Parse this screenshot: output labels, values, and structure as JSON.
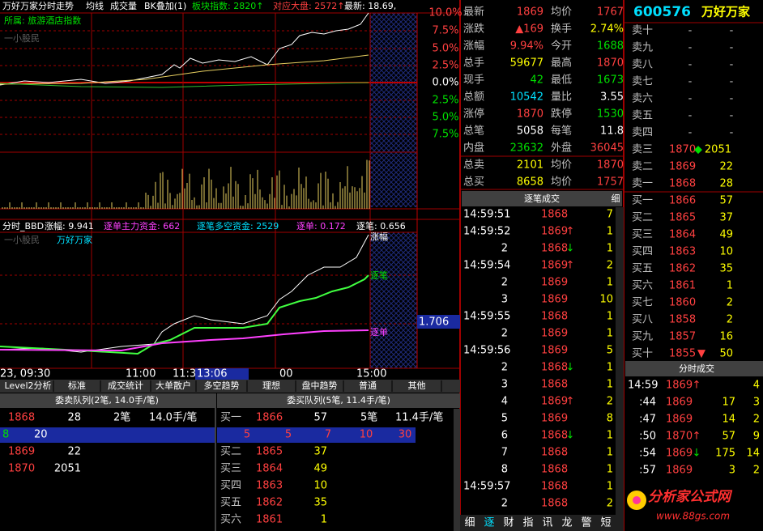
{
  "header": {
    "items": [
      "万好万家分时走势",
      "均线",
      "成交量",
      "BK叠加(1)",
      "板块指数: 2820↑",
      "对应大盘: 2572↑",
      "最新: 18.69,"
    ]
  },
  "sector": "所属: 旅游酒店指数",
  "watermark": "一小股民",
  "pct_axis": [
    "10.0%",
    "7.5%",
    "5.0%",
    "2.5%",
    "0.0%",
    "2.5%",
    "5.0%",
    "7.5%"
  ],
  "indicator": {
    "items": [
      "分时_BBD",
      "涨幅: 9.941",
      "逐单主力资金: 662",
      "逐笔多空资金: 2529",
      "逐单: 0.172",
      "逐笔: 0.656"
    ]
  },
  "sub_chart": {
    "watermark": "一小股民",
    "name": "万好万家",
    "labels": [
      "涨幅",
      "逐笔",
      "逐单"
    ],
    "cursor_value": "1.706"
  },
  "time_axis": [
    "23, 09:30",
    "11:00",
    "11:3",
    "13:06",
    "00",
    "15:00"
  ],
  "tabs": [
    "Level2分析",
    "标准",
    "成交统计",
    "大单散户",
    "多空趋势",
    "理想",
    "盘中趋势",
    "普通",
    "其他"
  ],
  "sell_queue": {
    "title": "委卖队列(2笔, 14.0手/笔)",
    "top": [
      1868,
      28,
      "2笔",
      "14.0手/笔"
    ],
    "detail": [
      8,
      20
    ],
    "rows": [
      [
        1869,
        22
      ],
      [
        1870,
        2051
      ]
    ]
  },
  "buy_queue": {
    "title": "委买队列(5笔, 11.4手/笔)",
    "top": [
      "买一",
      1866,
      57,
      "5笔",
      "11.4手/笔"
    ],
    "detail": [
      5,
      5,
      7,
      10,
      30
    ],
    "rows": [
      [
        "买二",
        1865,
        37
      ],
      [
        "买三",
        1864,
        49
      ],
      [
        "买四",
        1863,
        10
      ],
      [
        "买五",
        1862,
        35
      ],
      [
        "买六",
        1861,
        1
      ]
    ]
  },
  "quote": {
    "rows": [
      [
        "最新",
        1869,
        "均价",
        1767
      ],
      [
        "涨跌",
        "▲169",
        "换手",
        "2.74%"
      ],
      [
        "涨幅",
        "9.94%",
        "今开",
        1688
      ],
      [
        "总手",
        59677,
        "最高",
        1870
      ],
      [
        "现手",
        42,
        "最低",
        1673
      ],
      [
        "总额",
        10542,
        "量比",
        3.55
      ],
      [
        "涨停",
        1870,
        "跌停",
        1530
      ],
      [
        "总笔",
        5058,
        "每笔",
        11.8
      ],
      [
        "内盘",
        23632,
        "外盘",
        36045
      ],
      [
        "总卖",
        2101,
        "均价",
        1870
      ],
      [
        "总买",
        8658,
        "均价",
        1757
      ]
    ]
  },
  "stock": {
    "code": "600576",
    "name": "万好万家"
  },
  "levels": [
    {
      "l": "卖十",
      "p": "-",
      "v": "-"
    },
    {
      "l": "卖九",
      "p": "-",
      "v": "-"
    },
    {
      "l": "卖八",
      "p": "-",
      "v": "-"
    },
    {
      "l": "卖七",
      "p": "-",
      "v": "-"
    },
    {
      "l": "卖六",
      "p": "-",
      "v": "-"
    },
    {
      "l": "卖五",
      "p": "-",
      "v": "-"
    },
    {
      "l": "卖四",
      "p": "-",
      "v": "-"
    },
    {
      "l": "卖三",
      "p": 1870,
      "v": 2051,
      "a": "◆"
    },
    {
      "l": "卖二",
      "p": 1869,
      "v": 22
    },
    {
      "l": "卖一",
      "p": 1868,
      "v": 28
    },
    {
      "l": "买一",
      "p": 1866,
      "v": 57
    },
    {
      "l": "买二",
      "p": 1865,
      "v": 37
    },
    {
      "l": "买三",
      "p": 1864,
      "v": 49
    },
    {
      "l": "买四",
      "p": 1863,
      "v": 10
    },
    {
      "l": "买五",
      "p": 1862,
      "v": 35
    },
    {
      "l": "买六",
      "p": 1861,
      "v": 1
    },
    {
      "l": "买七",
      "p": 1860,
      "v": 2
    },
    {
      "l": "买八",
      "p": 1858,
      "v": 2
    },
    {
      "l": "买九",
      "p": 1857,
      "v": 16
    },
    {
      "l": "买十",
      "p": 1855,
      "v": 50,
      "a": "▼"
    }
  ],
  "trades": {
    "title": "逐笔成交",
    "tab": "细",
    "rows": [
      {
        "t": "14:59:51",
        "p": 1868,
        "v": 7
      },
      {
        "t": "14:59:52",
        "p": 1869,
        "a": "↑",
        "v": 1
      },
      {
        "t": "2",
        "p": 1868,
        "a": "↓",
        "v": 1
      },
      {
        "t": "14:59:54",
        "p": 1869,
        "a": "↑",
        "v": 2
      },
      {
        "t": "2",
        "p": 1869,
        "v": 1
      },
      {
        "t": "3",
        "p": 1869,
        "v": 10
      },
      {
        "t": "14:59:55",
        "p": 1868,
        "v": 1
      },
      {
        "t": "2",
        "p": 1869,
        "v": 1
      },
      {
        "t": "14:59:56",
        "p": 1869,
        "v": 5
      },
      {
        "t": "2",
        "p": 1868,
        "a": "↓",
        "v": 1
      },
      {
        "t": "3",
        "p": 1868,
        "v": 1
      },
      {
        "t": "4",
        "p": 1869,
        "a": "↑",
        "v": 2
      },
      {
        "t": "5",
        "p": 1869,
        "v": 8
      },
      {
        "t": "6",
        "p": 1868,
        "a": "↓",
        "v": 1
      },
      {
        "t": "7",
        "p": 1868,
        "v": 1
      },
      {
        "t": "8",
        "p": 1868,
        "v": 1
      },
      {
        "t": "14:59:57",
        "p": 1868,
        "v": 1
      },
      {
        "t": "2",
        "p": 1868,
        "v": 2
      }
    ]
  },
  "ticks": {
    "title": "分时成交",
    "rows": [
      {
        "t": "14:59",
        "p": 1869,
        "a": "↑",
        "n": 4
      },
      {
        "t": ":44",
        "p": 1869,
        "v": 17,
        "n": 3
      },
      {
        "t": ":47",
        "p": 1869,
        "v": 14,
        "n": 2
      },
      {
        "t": ":50",
        "p": 1870,
        "a": "↑",
        "v": 57,
        "n": 9
      },
      {
        "t": ":54",
        "p": 1869,
        "a": "↓",
        "v": 175,
        "n": 14
      },
      {
        "t": ":57",
        "p": 1869,
        "v": 3,
        "n": 2
      }
    ]
  },
  "bottom_tabs": [
    "细",
    "逐",
    "财",
    "指",
    "讯",
    "龙",
    "警",
    "短"
  ],
  "logo": {
    "name": "分析家公式网",
    "url": "www.88gs.com"
  }
}
